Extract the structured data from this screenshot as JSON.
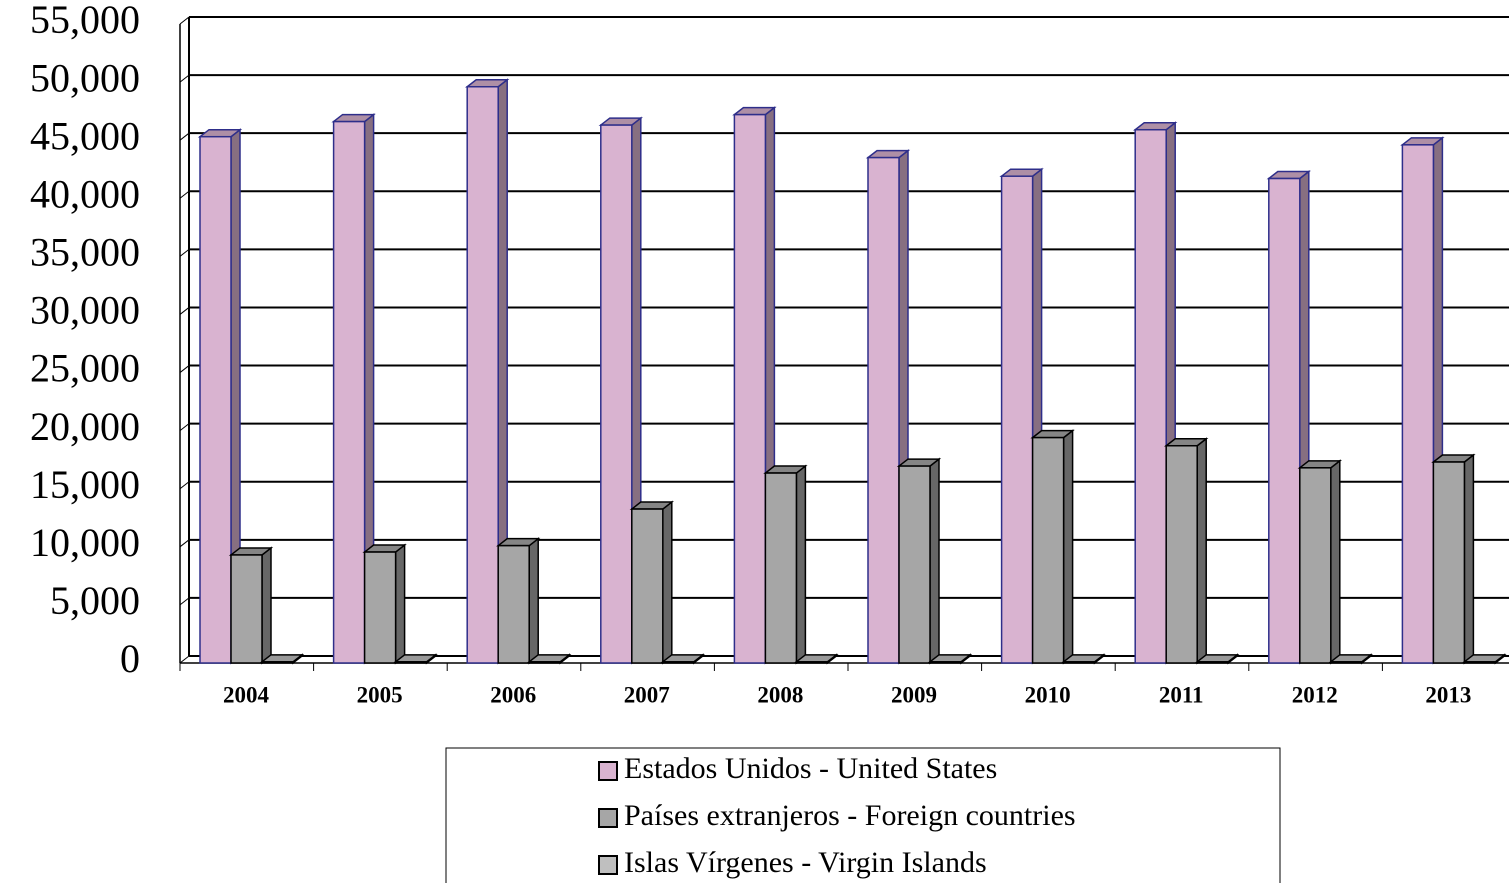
{
  "chart_data": {
    "type": "bar3d",
    "categories": [
      "2004",
      "2005",
      "2006",
      "2007",
      "2008",
      "2009",
      "2010",
      "2011",
      "2012",
      "2013"
    ],
    "series": [
      {
        "name": "Estados Unidos - United States",
        "color": "#d9b3d0",
        "values": [
          45300,
          46600,
          49600,
          46300,
          47200,
          43500,
          41900,
          45900,
          41700,
          44600
        ]
      },
      {
        "name": "Países extranjeros - Foreign countries",
        "color": "#a6a6a6",
        "values": [
          9300,
          9550,
          10100,
          13250,
          16350,
          16950,
          19400,
          18700,
          16800,
          17300
        ]
      },
      {
        "name": "Islas Vírgenes - Virgin Islands",
        "color": "#bfbfbf",
        "values": [
          100,
          100,
          100,
          100,
          100,
          100,
          100,
          100,
          100,
          100
        ]
      }
    ],
    "ylim": [
      0,
      55000
    ],
    "yticks": [
      0,
      {
        "value": 5000,
        "label": "5,000"
      },
      {
        "value": 10000,
        "label": "10,000"
      },
      {
        "value": 15000,
        "label": "15,000"
      },
      {
        "value": 20000,
        "label": "20,000"
      },
      {
        "value": 25000,
        "label": "25,000"
      },
      {
        "value": 30000,
        "label": "30,000"
      },
      {
        "value": 35000,
        "label": "35,000"
      },
      {
        "value": 40000,
        "label": "40,000"
      },
      {
        "value": 45000,
        "label": "45,000"
      },
      {
        "value": 50000,
        "label": "50,000"
      },
      {
        "value": 55000,
        "label": "55,000"
      }
    ],
    "grid": true
  }
}
